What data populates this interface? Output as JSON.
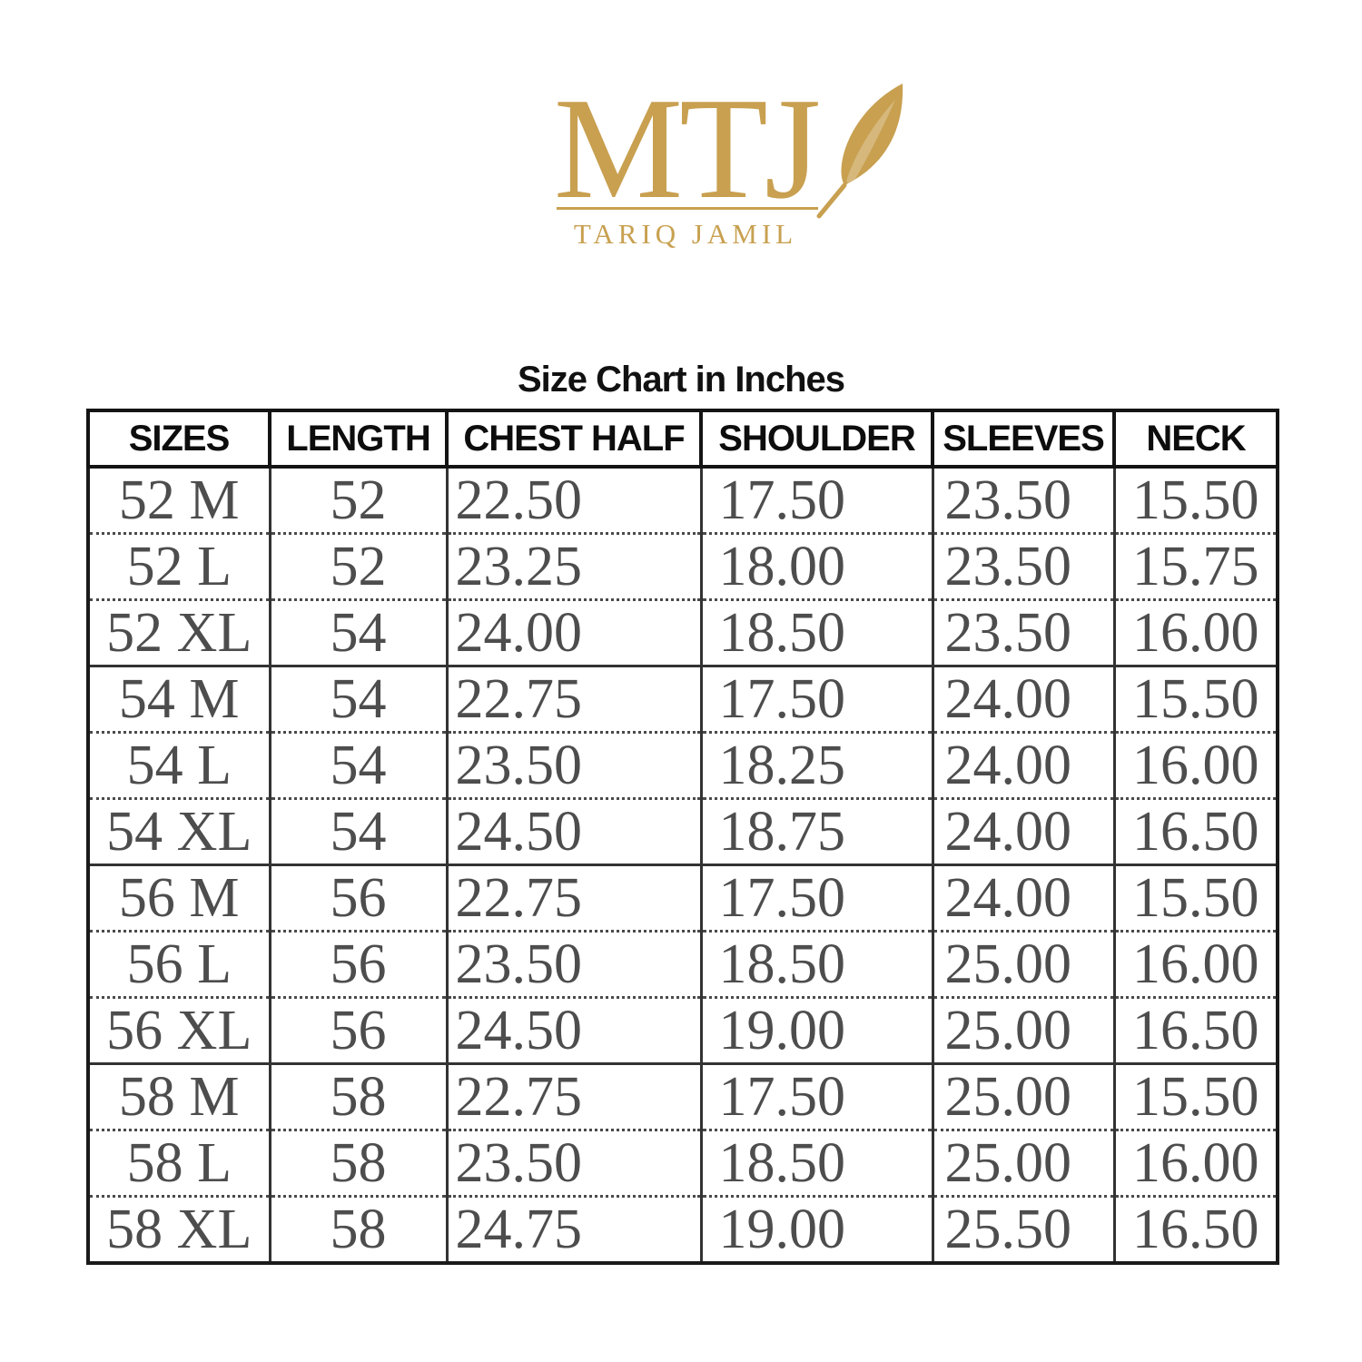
{
  "logo": {
    "brand": "MTJ",
    "subtitle": "TARIQ JAMIL",
    "icon": "feather-quill-icon",
    "color_gold": "#C8A050"
  },
  "colors": {
    "header_text": "#0D0D0D",
    "data_text": "#4D4D4D",
    "border": "#333333",
    "background": "#FFFFFF"
  },
  "chart_data": {
    "type": "table",
    "title": "Size Chart in Inches",
    "columns": [
      "SIZES",
      "LENGTH",
      "CHEST HALF",
      "SHOULDER",
      "SLEEVES",
      "NECK"
    ],
    "rows": [
      [
        "52 M",
        "52",
        "22.50",
        "17.50",
        "23.50",
        "15.50"
      ],
      [
        "52 L",
        "52",
        "23.25",
        "18.00",
        "23.50",
        "15.75"
      ],
      [
        "52 XL",
        "54",
        "24.00",
        "18.50",
        "23.50",
        "16.00"
      ],
      [
        "54 M",
        "54",
        "22.75",
        "17.50",
        "24.00",
        "15.50"
      ],
      [
        "54 L",
        "54",
        "23.50",
        "18.25",
        "24.00",
        "16.00"
      ],
      [
        "54 XL",
        "54",
        "24.50",
        "18.75",
        "24.00",
        "16.50"
      ],
      [
        "56 M",
        "56",
        "22.75",
        "17.50",
        "24.00",
        "15.50"
      ],
      [
        "56 L",
        "56",
        "23.50",
        "18.50",
        "25.00",
        "16.00"
      ],
      [
        "56 XL",
        "56",
        "24.50",
        "19.00",
        "25.00",
        "16.50"
      ],
      [
        "58 M",
        "58",
        "22.75",
        "17.50",
        "25.00",
        "15.50"
      ],
      [
        "58 L",
        "58",
        "23.50",
        "18.50",
        "25.00",
        "16.00"
      ],
      [
        "58 XL",
        "58",
        "24.75",
        "19.00",
        "25.50",
        "16.50"
      ]
    ],
    "units": "inches",
    "group_size": 3,
    "layout_hints": {
      "row_separator_within_group": "dotted",
      "row_separator_between_groups": "solid",
      "grid": true
    }
  }
}
